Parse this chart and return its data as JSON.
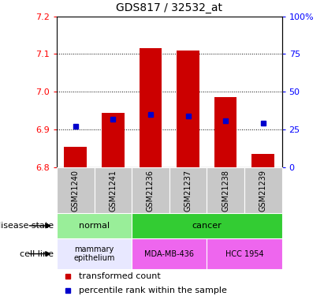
{
  "title": "GDS817 / 32532_at",
  "samples": [
    "GSM21240",
    "GSM21241",
    "GSM21236",
    "GSM21237",
    "GSM21238",
    "GSM21239"
  ],
  "bar_values": [
    6.855,
    6.945,
    7.115,
    7.11,
    6.985,
    6.835
  ],
  "bar_bottom": 6.8,
  "percentile_values": [
    27,
    32,
    35,
    34,
    31,
    29
  ],
  "ylim_left": [
    6.8,
    7.2
  ],
  "ylim_right": [
    0,
    100
  ],
  "yticks_left": [
    6.8,
    6.9,
    7.0,
    7.1,
    7.2
  ],
  "yticks_right": [
    0,
    25,
    50,
    75,
    100
  ],
  "bar_color": "#cc0000",
  "percentile_color": "#0000cc",
  "disease_state_labels": [
    "normal",
    "cancer"
  ],
  "disease_normal_color": "#99ee99",
  "disease_cancer_color": "#33cc33",
  "cell_line_labels": [
    "mammary\nepithelium",
    "MDA-MB-436",
    "HCC 1954"
  ],
  "cell_normal_color": "#e8e8ff",
  "cell_cancer_color": "#ee66ee",
  "sample_bg_color": "#c8c8c8",
  "legend_items": [
    "transformed count",
    "percentile rank within the sample"
  ],
  "legend_colors": [
    "#cc0000",
    "#0000cc"
  ],
  "grid_color": "#000000",
  "plot_bg": "#ffffff"
}
